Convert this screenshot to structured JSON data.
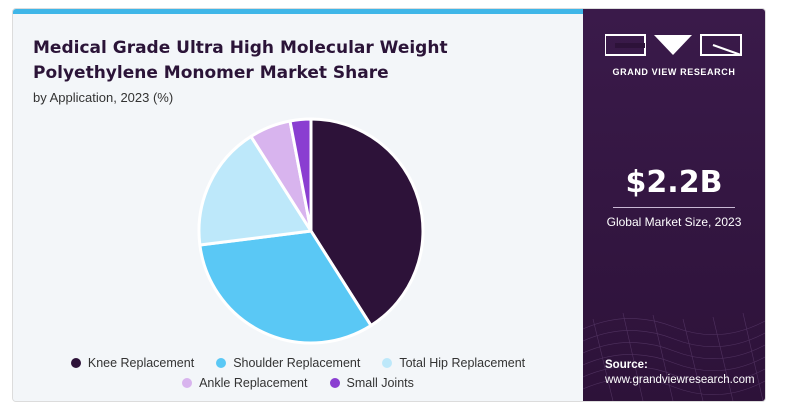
{
  "title": "Medical Grade Ultra High Molecular Weight Polyethylene Monomer Market Share",
  "subtitle": "by Application, 2023 (%)",
  "brand": {
    "name": "GRAND VIEW RESEARCH"
  },
  "market": {
    "value": "$2.2B",
    "label": "Global Market Size, 2023"
  },
  "source": {
    "label": "Source:",
    "url": "www.grandviewresearch.com"
  },
  "colors": {
    "accent_bar": "#3fb6e8",
    "panel": "#2d1239"
  },
  "chart_data": {
    "type": "pie",
    "series": [
      {
        "name": "Knee Replacement",
        "value": 41,
        "color": "#2d1239"
      },
      {
        "name": "Shoulder Replacement",
        "value": 32,
        "color": "#5ac8f5"
      },
      {
        "name": "Total Hip Replacement",
        "value": 18,
        "color": "#bde8fa"
      },
      {
        "name": "Ankle Replacement",
        "value": 6,
        "color": "#d8b4ee"
      },
      {
        "name": "Small Joints",
        "value": 3,
        "color": "#8a3ed1"
      }
    ],
    "legend_position": "bottom"
  }
}
